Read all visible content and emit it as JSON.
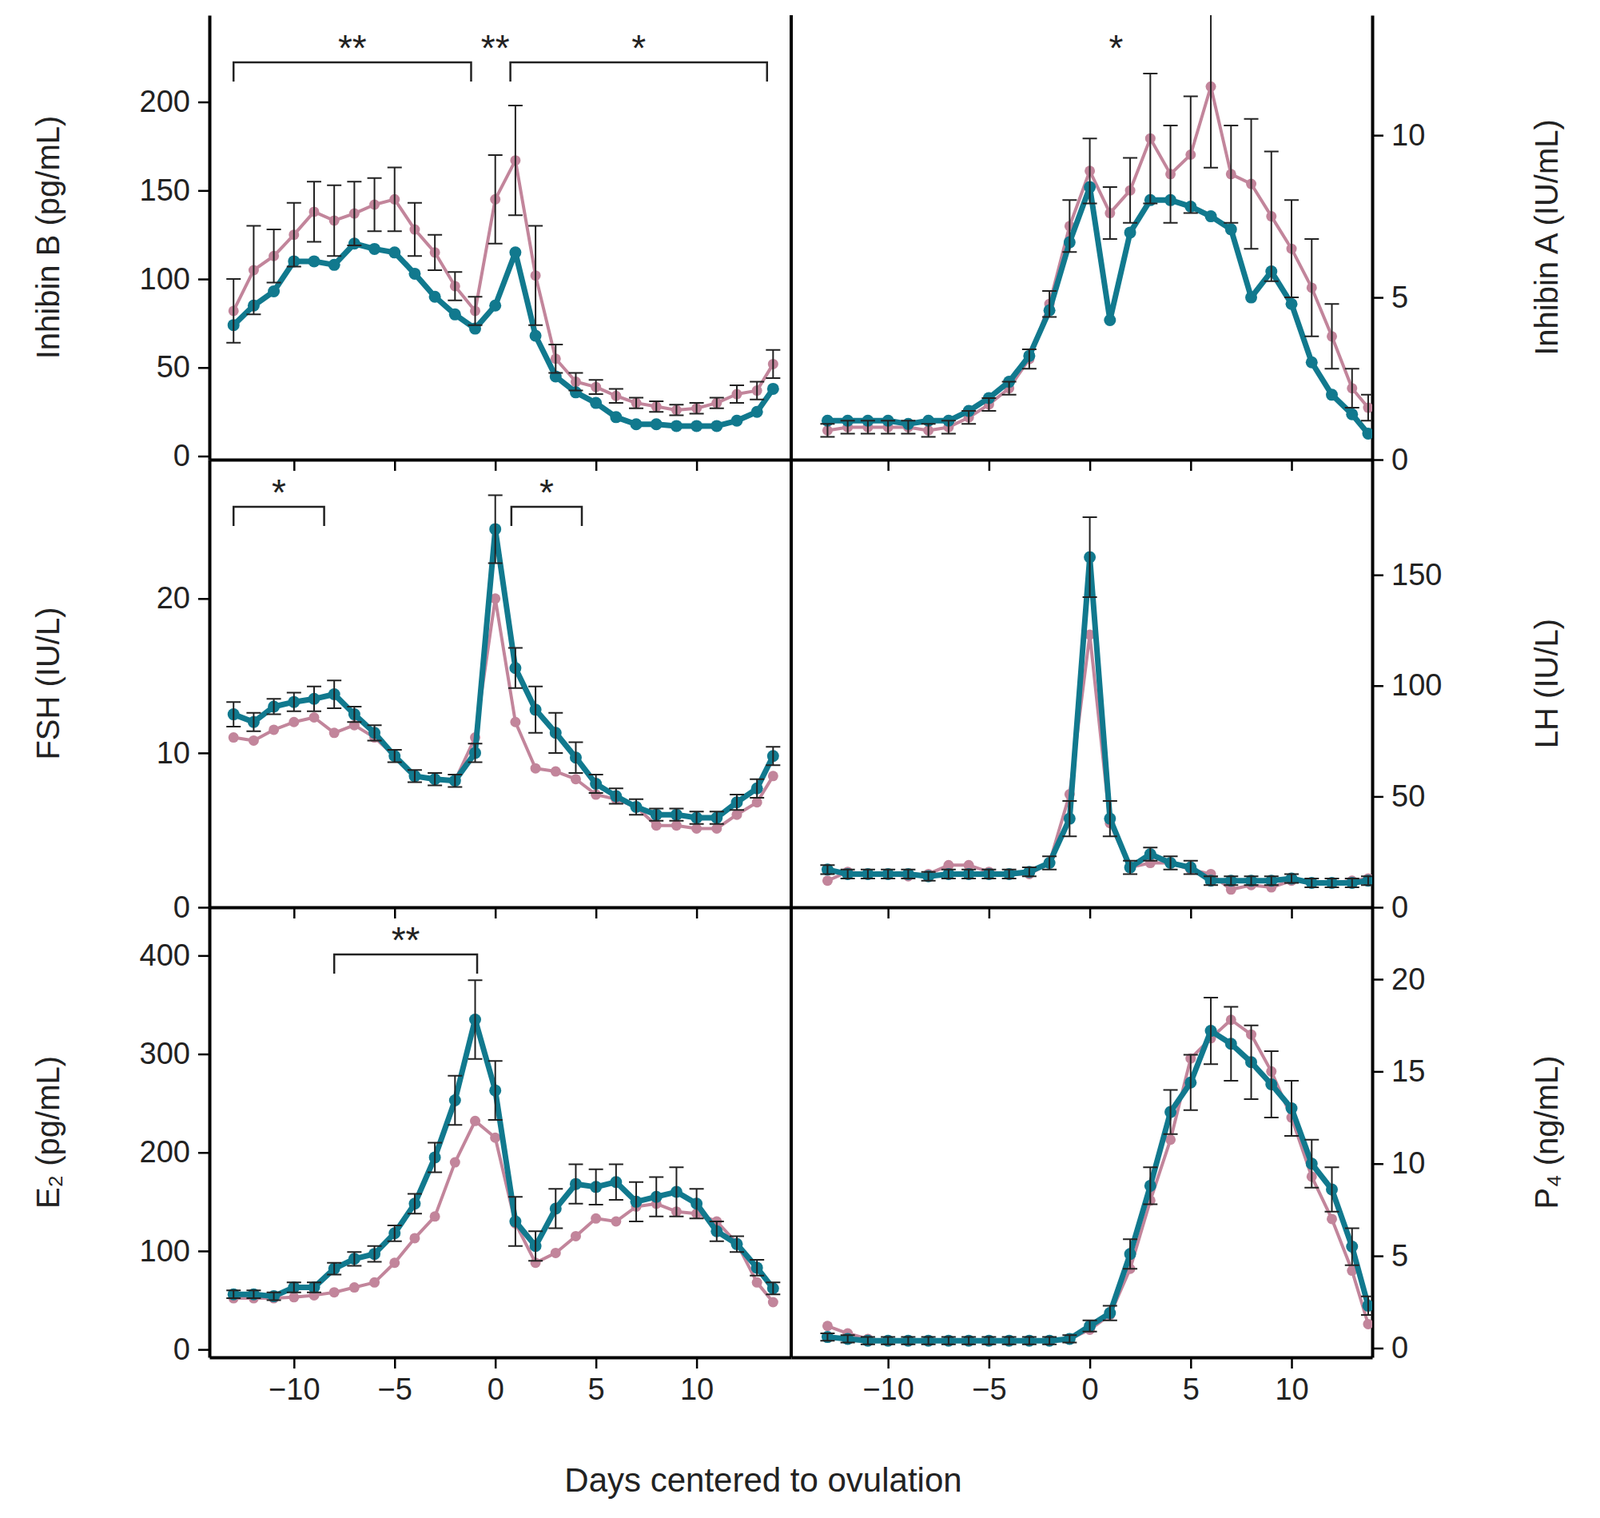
{
  "xlabel": "Days centered to ovulation",
  "chart_data": [
    {
      "type": "line",
      "ylabel": "Inhibin B (pg/mL)",
      "marker": "circle",
      "line_style": "solid",
      "tick_labels": "y",
      "x": [
        -13,
        -12,
        -11,
        -10,
        -9,
        -8,
        -7,
        -6,
        -5,
        -4,
        -3,
        -2,
        -1,
        0,
        1,
        2,
        3,
        4,
        5,
        6,
        7,
        8,
        9,
        10,
        11,
        12,
        13,
        13.8
      ],
      "xlim": [
        -14.2,
        14.7
      ],
      "xticks": [
        -10,
        -5,
        0,
        5,
        10
      ],
      "ylim": [
        -2,
        249
      ],
      "yticks": [
        0,
        50,
        100,
        150,
        200
      ],
      "series": [
        {
          "color": "#c2859b",
          "values": [
            82,
            105,
            113,
            125,
            138,
            133,
            137,
            142,
            145,
            128,
            115,
            96,
            82,
            145,
            167,
            102,
            55,
            42,
            39,
            34,
            30,
            28,
            26,
            27,
            30,
            35,
            37,
            52
          ],
          "errors": [
            18,
            25,
            15,
            18,
            17,
            20,
            18,
            15,
            18,
            15,
            10,
            8,
            8,
            25,
            31,
            28,
            8,
            5,
            4,
            4,
            3,
            3,
            3,
            3,
            3,
            5,
            5,
            8
          ]
        },
        {
          "color": "#11798e",
          "values": [
            74,
            85,
            93,
            110,
            110,
            108,
            120,
            117,
            115,
            103,
            90,
            80,
            72,
            85,
            115,
            68,
            45,
            36,
            30,
            22,
            18,
            18,
            17,
            17,
            17,
            20,
            25,
            38
          ]
        }
      ],
      "annotations": [
        {
          "text": "**",
          "x1": -13,
          "x2": -1.2
        },
        {
          "text": "**",
          "x": 0
        },
        {
          "text": "*",
          "x1": 0.75,
          "x2": 13.5
        }
      ]
    },
    {
      "type": "line",
      "ylabel": "Inhibin A (IU/mL)",
      "marker": "circle",
      "line_style": "solid",
      "tick_labels": "y",
      "x": [
        -13,
        -12,
        -11,
        -10,
        -9,
        -8,
        -7,
        -6,
        -5,
        -4,
        -3,
        -2,
        -1,
        0,
        1,
        2,
        3,
        4,
        5,
        6,
        7,
        8,
        9,
        10,
        11,
        12,
        13,
        13.8
      ],
      "xlim": [
        -14.8,
        14.0
      ],
      "xticks": [
        -10,
        -5,
        0,
        5,
        10
      ],
      "ylim": [
        0,
        13.7
      ],
      "yticks": [
        0,
        5,
        10
      ],
      "series": [
        {
          "color": "#c2859b",
          "values": [
            0.9,
            1.0,
            1.0,
            1.0,
            1.0,
            0.9,
            1.0,
            1.3,
            1.7,
            2.2,
            3.1,
            4.8,
            7.2,
            8.9,
            7.6,
            8.3,
            9.9,
            8.8,
            9.4,
            11.5,
            8.8,
            8.5,
            7.5,
            6.5,
            5.3,
            3.8,
            2.2,
            1.6
          ],
          "errors": [
            0.2,
            0.2,
            0.2,
            0.2,
            0.2,
            0.2,
            0.2,
            0.2,
            0.2,
            0.2,
            0.3,
            0.4,
            0.8,
            1.0,
            0.8,
            1.0,
            2.0,
            1.5,
            1.8,
            2.5,
            1.5,
            2.0,
            2.0,
            1.5,
            1.5,
            1.0,
            0.6,
            0.4
          ]
        },
        {
          "color": "#11798e",
          "values": [
            1.2,
            1.2,
            1.2,
            1.2,
            1.1,
            1.2,
            1.2,
            1.5,
            1.9,
            2.4,
            3.2,
            4.6,
            6.7,
            8.4,
            4.3,
            7.0,
            8.0,
            8.0,
            7.8,
            7.5,
            7.1,
            5.0,
            5.8,
            4.8,
            3.0,
            2.0,
            1.4,
            0.8
          ]
        }
      ],
      "annotations": [
        {
          "text": "*",
          "x": 1.3
        }
      ]
    },
    {
      "type": "line",
      "ylabel": "FSH (IU/L)",
      "marker": "circle",
      "line_style": "solid",
      "tick_labels": "y",
      "x": [
        -13,
        -12,
        -11,
        -10,
        -9,
        -8,
        -7,
        -6,
        -5,
        -4,
        -3,
        -2,
        -1,
        0,
        1,
        2,
        3,
        4,
        5,
        6,
        7,
        8,
        9,
        10,
        11,
        12,
        13,
        13.8
      ],
      "xlim": [
        -14.2,
        14.7
      ],
      "xticks": [
        -10,
        -5,
        0,
        5,
        10
      ],
      "ylim": [
        0,
        29
      ],
      "yticks": [
        0,
        10,
        20
      ],
      "series": [
        {
          "color": "#c2859b",
          "values": [
            11.0,
            10.8,
            11.5,
            12.0,
            12.3,
            11.3,
            11.8,
            11.0,
            9.8,
            8.5,
            8.3,
            8.2,
            11.0,
            20.0,
            12.0,
            9.0,
            8.8,
            8.3,
            7.3,
            7.0,
            6.5,
            5.3,
            5.3,
            5.1,
            5.1,
            6.0,
            6.8,
            8.5
          ]
        },
        {
          "color": "#11798e",
          "values": [
            12.5,
            12.0,
            13.0,
            13.3,
            13.5,
            13.8,
            12.5,
            11.3,
            9.8,
            8.5,
            8.3,
            8.2,
            10.0,
            24.5,
            15.5,
            12.8,
            11.3,
            9.7,
            8.0,
            7.2,
            6.5,
            6.0,
            6.0,
            5.8,
            5.8,
            6.8,
            7.7,
            9.8
          ],
          "errors": [
            0.8,
            0.6,
            0.5,
            0.6,
            0.8,
            0.9,
            0.5,
            0.5,
            0.4,
            0.4,
            0.4,
            0.4,
            0.6,
            2.2,
            1.3,
            1.5,
            1.3,
            1.0,
            0.6,
            0.5,
            0.5,
            0.4,
            0.4,
            0.4,
            0.4,
            0.5,
            0.6,
            0.6
          ]
        }
      ],
      "annotations": [
        {
          "text": "*",
          "x1": -13,
          "x2": -8.5
        },
        {
          "text": "*",
          "x1": 0.8,
          "x2": 4.3
        }
      ]
    },
    {
      "type": "line",
      "ylabel": "LH (IU/L)",
      "marker": "circle",
      "line_style": "solid",
      "tick_labels": "y",
      "x": [
        -13,
        -12,
        -11,
        -10,
        -9,
        -8,
        -7,
        -6,
        -5,
        -4,
        -3,
        -2,
        -1,
        0,
        1,
        2,
        3,
        4,
        5,
        6,
        7,
        8,
        9,
        10,
        11,
        12,
        13,
        13.8
      ],
      "xlim": [
        -14.8,
        14.0
      ],
      "xticks": [
        -10,
        -5,
        0,
        5,
        10
      ],
      "ylim": [
        0,
        202
      ],
      "yticks": [
        0,
        50,
        100,
        150
      ],
      "series": [
        {
          "color": "#c2859b",
          "values": [
            12,
            16,
            15,
            15,
            14,
            15,
            19,
            19,
            16,
            15,
            15,
            20,
            51,
            123,
            38,
            18,
            20,
            20,
            17,
            15,
            8,
            10,
            9,
            12,
            11,
            11,
            12,
            13
          ]
        },
        {
          "color": "#11798e",
          "values": [
            17,
            15,
            15,
            15,
            15,
            14,
            15,
            15,
            15,
            15,
            16,
            20,
            40,
            158,
            40,
            18,
            24,
            20,
            18,
            12,
            12,
            12,
            12,
            13,
            11,
            11,
            11,
            12
          ],
          "errors": [
            2,
            2,
            2,
            2,
            2,
            2,
            2,
            2,
            2,
            2,
            2,
            3,
            8,
            18,
            8,
            3,
            3,
            3,
            3,
            2,
            2,
            2,
            2,
            2,
            2,
            2,
            2,
            2
          ]
        }
      ]
    },
    {
      "type": "line",
      "ylabel": "E₂ (pg/mL)",
      "marker": "circle",
      "line_style": "solid",
      "x": [
        -13,
        -12,
        -11,
        -10,
        -9,
        -8,
        -7,
        -6,
        -5,
        -4,
        -3,
        -2,
        -1,
        0,
        1,
        2,
        3,
        4,
        5,
        6,
        7,
        8,
        9,
        10,
        11,
        12,
        13,
        13.8
      ],
      "xlim": [
        -14.2,
        14.7
      ],
      "xticks": [
        {
          "value": -10,
          "label": "−10"
        },
        {
          "value": -5,
          "label": "−5"
        },
        0,
        5,
        10
      ],
      "ylim": [
        -8,
        449
      ],
      "yticks": [
        0,
        100,
        200,
        300,
        400
      ],
      "series": [
        {
          "color": "#c2859b",
          "values": [
            52,
            52,
            52,
            53,
            55,
            58,
            63,
            68,
            88,
            113,
            135,
            190,
            232,
            215,
            128,
            88,
            98,
            115,
            133,
            130,
            145,
            148,
            140,
            138,
            130,
            108,
            68,
            48
          ]
        },
        {
          "color": "#11798e",
          "values": [
            56,
            56,
            54,
            63,
            63,
            82,
            92,
            97,
            118,
            148,
            195,
            253,
            335,
            263,
            130,
            105,
            143,
            168,
            165,
            170,
            150,
            155,
            160,
            148,
            120,
            107,
            83,
            62
          ],
          "errors": [
            4,
            4,
            4,
            5,
            5,
            6,
            7,
            8,
            8,
            10,
            15,
            25,
            40,
            30,
            25,
            15,
            20,
            20,
            18,
            18,
            20,
            20,
            25,
            15,
            10,
            8,
            8,
            6
          ]
        }
      ],
      "annotations": [
        {
          "text": "**",
          "x1": -8,
          "x2": -0.9
        }
      ]
    },
    {
      "type": "line",
      "ylabel": "P₄ (ng/mL)",
      "marker": "circle",
      "line_style": "solid",
      "x": [
        -13,
        -12,
        -11,
        -10,
        -9,
        -8,
        -7,
        -6,
        -5,
        -4,
        -3,
        -2,
        -1,
        0,
        1,
        2,
        3,
        4,
        5,
        6,
        7,
        8,
        9,
        10,
        11,
        12,
        13,
        13.8
      ],
      "xlim": [
        -14.8,
        14.0
      ],
      "xticks": [
        {
          "value": -10,
          "label": "−10"
        },
        {
          "value": -5,
          "label": "−5"
        },
        0,
        5,
        10
      ],
      "ylim": [
        -0.5,
        23.9
      ],
      "yticks": [
        0,
        5,
        10,
        15,
        20
      ],
      "series": [
        {
          "color": "#c2859b",
          "values": [
            1.2,
            0.8,
            0.5,
            0.4,
            0.4,
            0.4,
            0.4,
            0.4,
            0.4,
            0.4,
            0.4,
            0.4,
            0.5,
            1.0,
            1.8,
            4.3,
            8.0,
            11.3,
            15.7,
            16.8,
            17.8,
            17.0,
            15.0,
            12.5,
            9.3,
            7.0,
            4.2,
            1.3
          ]
        },
        {
          "color": "#11798e",
          "values": [
            0.6,
            0.5,
            0.4,
            0.4,
            0.4,
            0.4,
            0.4,
            0.4,
            0.4,
            0.4,
            0.4,
            0.4,
            0.5,
            1.2,
            1.9,
            5.1,
            8.8,
            12.8,
            14.4,
            17.2,
            16.5,
            15.5,
            14.3,
            13.0,
            10.0,
            8.6,
            5.5,
            2.3
          ],
          "errors": [
            0.2,
            0.2,
            0.2,
            0.2,
            0.2,
            0.2,
            0.2,
            0.2,
            0.2,
            0.2,
            0.2,
            0.2,
            0.2,
            0.3,
            0.4,
            0.8,
            1.0,
            1.2,
            1.5,
            1.8,
            2.0,
            2.0,
            1.8,
            1.5,
            1.3,
            1.2,
            1.0,
            0.5
          ]
        }
      ]
    }
  ]
}
